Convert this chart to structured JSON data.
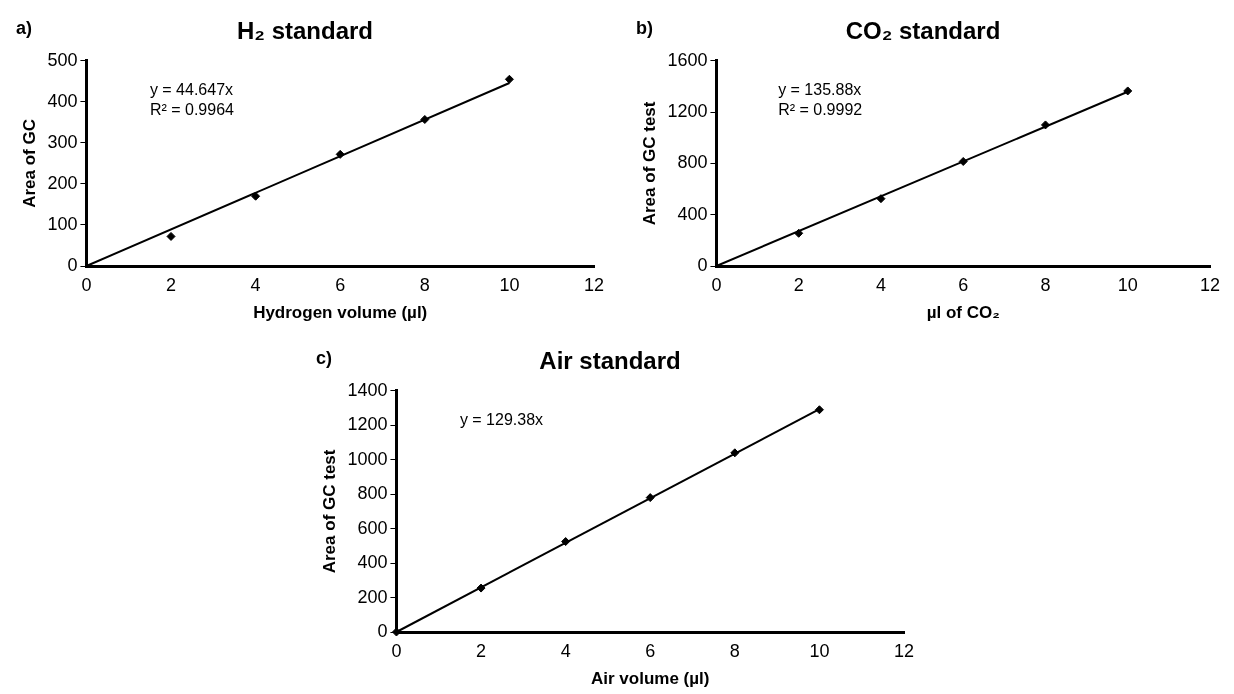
{
  "chart_data": [
    {
      "type": "scatter",
      "title": "H₂ standard",
      "xlabel": "Hydrogen volume (µl)",
      "ylabel": "Area of GC",
      "annotations": [
        "a)",
        "y = 44.647x",
        "R² = 0.9964"
      ],
      "xlim": [
        0,
        12
      ],
      "xticks": [
        0,
        2,
        4,
        6,
        8,
        10,
        12
      ],
      "ylim": [
        0,
        500
      ],
      "yticks": [
        0,
        100,
        200,
        300,
        400,
        500
      ],
      "marker": "diamond",
      "grid": false,
      "legend": false,
      "series": [
        {
          "color": "#000000",
          "x": [
            2,
            4,
            6,
            8,
            10
          ],
          "values": [
            72,
            170,
            272,
            357,
            455
          ]
        },
        {
          "type": "line",
          "color": "#000000",
          "marker": "none",
          "line_style": "solid",
          "x": [
            0,
            10
          ],
          "values": [
            0,
            446
          ]
        }
      ]
    },
    {
      "type": "scatter",
      "title": "CO₂ standard",
      "xlabel": "µl of CO₂",
      "ylabel": "Area of GC test",
      "annotations": [
        "b)",
        "y = 135.88x",
        "R² = 0.9992"
      ],
      "xlim": [
        0,
        12
      ],
      "xticks": [
        0,
        2,
        4,
        6,
        8,
        10,
        12
      ],
      "ylim": [
        0,
        1600
      ],
      "yticks": [
        0,
        400,
        800,
        1200,
        1600
      ],
      "marker": "diamond",
      "grid": false,
      "legend": false,
      "series": [
        {
          "color": "#000000",
          "x": [
            2,
            4,
            6,
            8,
            10
          ],
          "values": [
            255,
            525,
            815,
            1100,
            1365
          ]
        },
        {
          "type": "line",
          "color": "#000000",
          "marker": "none",
          "line_style": "solid",
          "x": [
            0,
            10
          ],
          "values": [
            0,
            1359
          ]
        }
      ]
    },
    {
      "type": "scatter",
      "title": "Air standard",
      "xlabel": "Air volume (µl)",
      "ylabel": "Area of GC test",
      "annotations": [
        "c)",
        "y = 129.38x"
      ],
      "xlim": [
        0,
        12
      ],
      "xticks": [
        0,
        2,
        4,
        6,
        8,
        10,
        12
      ],
      "ylim": [
        0,
        1400
      ],
      "yticks": [
        0,
        200,
        400,
        600,
        800,
        1000,
        1200,
        1400
      ],
      "marker": "diamond",
      "grid": false,
      "legend": false,
      "series": [
        {
          "color": "#000000",
          "x": [
            0,
            2,
            4,
            6,
            8,
            10
          ],
          "values": [
            0,
            255,
            525,
            780,
            1040,
            1290
          ]
        },
        {
          "type": "line",
          "color": "#000000",
          "marker": "none",
          "line_style": "solid",
          "x": [
            0,
            10
          ],
          "values": [
            0,
            1294
          ]
        }
      ]
    }
  ]
}
